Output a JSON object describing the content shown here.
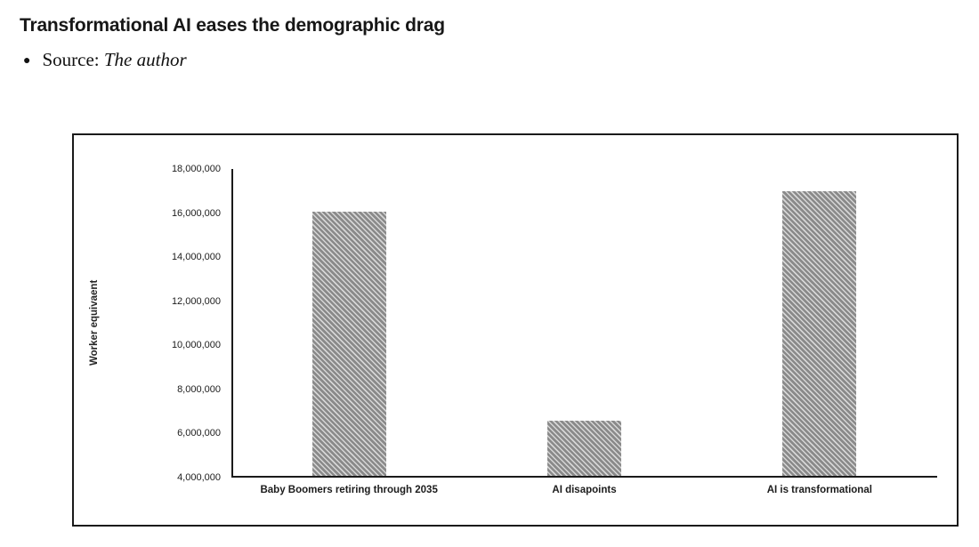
{
  "header": {
    "title": "Transformational AI eases the demographic drag",
    "bullet_prefix": "Source: ",
    "bullet_emphasis": "The author"
  },
  "chart_data": {
    "type": "bar",
    "title": "Transformational AI eases the demographic drag",
    "categories": [
      "Baby Boomers retiring through 2035",
      "AI disapoints",
      "AI is transformational"
    ],
    "values": [
      16000000,
      6500000,
      16900000
    ],
    "xlabel": "",
    "ylabel": "Worker equivaent",
    "ylim": [
      4000000,
      18000000
    ],
    "ytick_step": 2000000,
    "ytick_labels": [
      "4,000,000",
      "6,000,000",
      "8,000,000",
      "10,000,000",
      "12,000,000",
      "14,000,000",
      "16,000,000",
      "18,000,000"
    ],
    "grid": false,
    "legend": "none",
    "bar_hatch": "diagonal-down",
    "bar_hatch_dark": "#8a8a8a",
    "bar_hatch_light": "#d6d6d6",
    "axis_color": "#1a1a1a"
  }
}
